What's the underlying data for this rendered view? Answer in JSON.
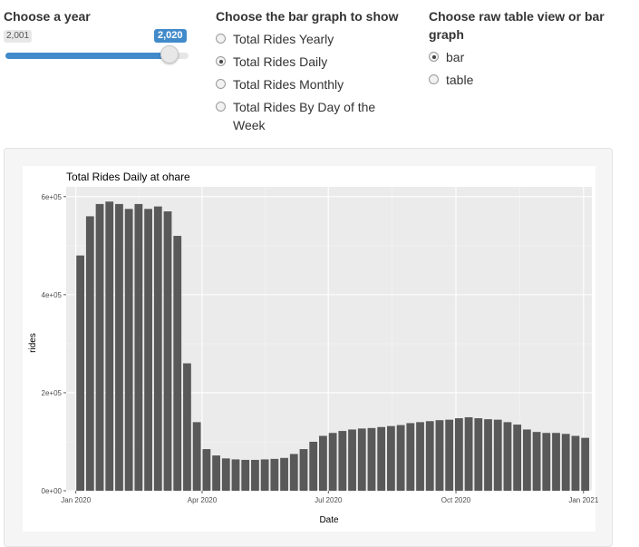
{
  "year_control": {
    "label": "Choose a year",
    "min_label": "2,001",
    "value_label": "2,020",
    "value": 2020,
    "fill_fraction": 0.9
  },
  "graph_choice": {
    "label": "Choose the bar graph to show",
    "options": [
      {
        "label": "Total Rides Yearly",
        "checked": false
      },
      {
        "label": "Total Rides Daily",
        "checked": true
      },
      {
        "label": "Total Rides Monthly",
        "checked": false
      },
      {
        "label": "Total Rides By Day of the Week",
        "checked": false
      }
    ]
  },
  "view_choice": {
    "label": "Choose raw table view or bar graph",
    "options": [
      {
        "label": "bar",
        "checked": true
      },
      {
        "label": "table",
        "checked": false
      }
    ]
  },
  "colors": {
    "accent": "#428bca",
    "bar": "#595959",
    "panel": "#ebebeb"
  },
  "chart_data": {
    "type": "bar",
    "title": "Total Rides Daily at ohare",
    "xlabel": "Date",
    "ylabel": "rides",
    "x_ticks": [
      "Jan 2020",
      "Apr 2020",
      "Jul 2020",
      "Oct 2020",
      "Jan 2021"
    ],
    "y_ticks": [
      "0e+00",
      "2e+05",
      "4e+05",
      "6e+05"
    ],
    "ylim": [
      0,
      620000
    ],
    "xlim": [
      "2019-12-25",
      "2021-01-07"
    ],
    "grid": true,
    "x": [
      "2020-01-01",
      "2020-01-08",
      "2020-01-15",
      "2020-01-22",
      "2020-01-29",
      "2020-02-05",
      "2020-02-12",
      "2020-02-19",
      "2020-02-26",
      "2020-03-04",
      "2020-03-11",
      "2020-03-18",
      "2020-03-25",
      "2020-04-01",
      "2020-04-08",
      "2020-04-15",
      "2020-04-22",
      "2020-04-29",
      "2020-05-06",
      "2020-05-13",
      "2020-05-20",
      "2020-05-27",
      "2020-06-03",
      "2020-06-10",
      "2020-06-17",
      "2020-06-24",
      "2020-07-01",
      "2020-07-08",
      "2020-07-15",
      "2020-07-22",
      "2020-07-29",
      "2020-08-05",
      "2020-08-12",
      "2020-08-19",
      "2020-08-26",
      "2020-09-02",
      "2020-09-09",
      "2020-09-16",
      "2020-09-23",
      "2020-09-30",
      "2020-10-07",
      "2020-10-14",
      "2020-10-21",
      "2020-10-28",
      "2020-11-04",
      "2020-11-11",
      "2020-11-18",
      "2020-11-25",
      "2020-12-02",
      "2020-12-09",
      "2020-12-16",
      "2020-12-23",
      "2020-12-30"
    ],
    "values": [
      480000,
      560000,
      585000,
      590000,
      585000,
      575000,
      585000,
      575000,
      580000,
      570000,
      520000,
      260000,
      140000,
      85000,
      72000,
      66000,
      64000,
      63000,
      63000,
      64000,
      65000,
      67000,
      75000,
      85000,
      100000,
      112000,
      118000,
      122000,
      125000,
      127000,
      128000,
      130000,
      132000,
      134000,
      138000,
      140000,
      142000,
      144000,
      145000,
      148000,
      150000,
      148000,
      146000,
      145000,
      140000,
      135000,
      125000,
      120000,
      118000,
      118000,
      116000,
      112000,
      108000
    ]
  }
}
